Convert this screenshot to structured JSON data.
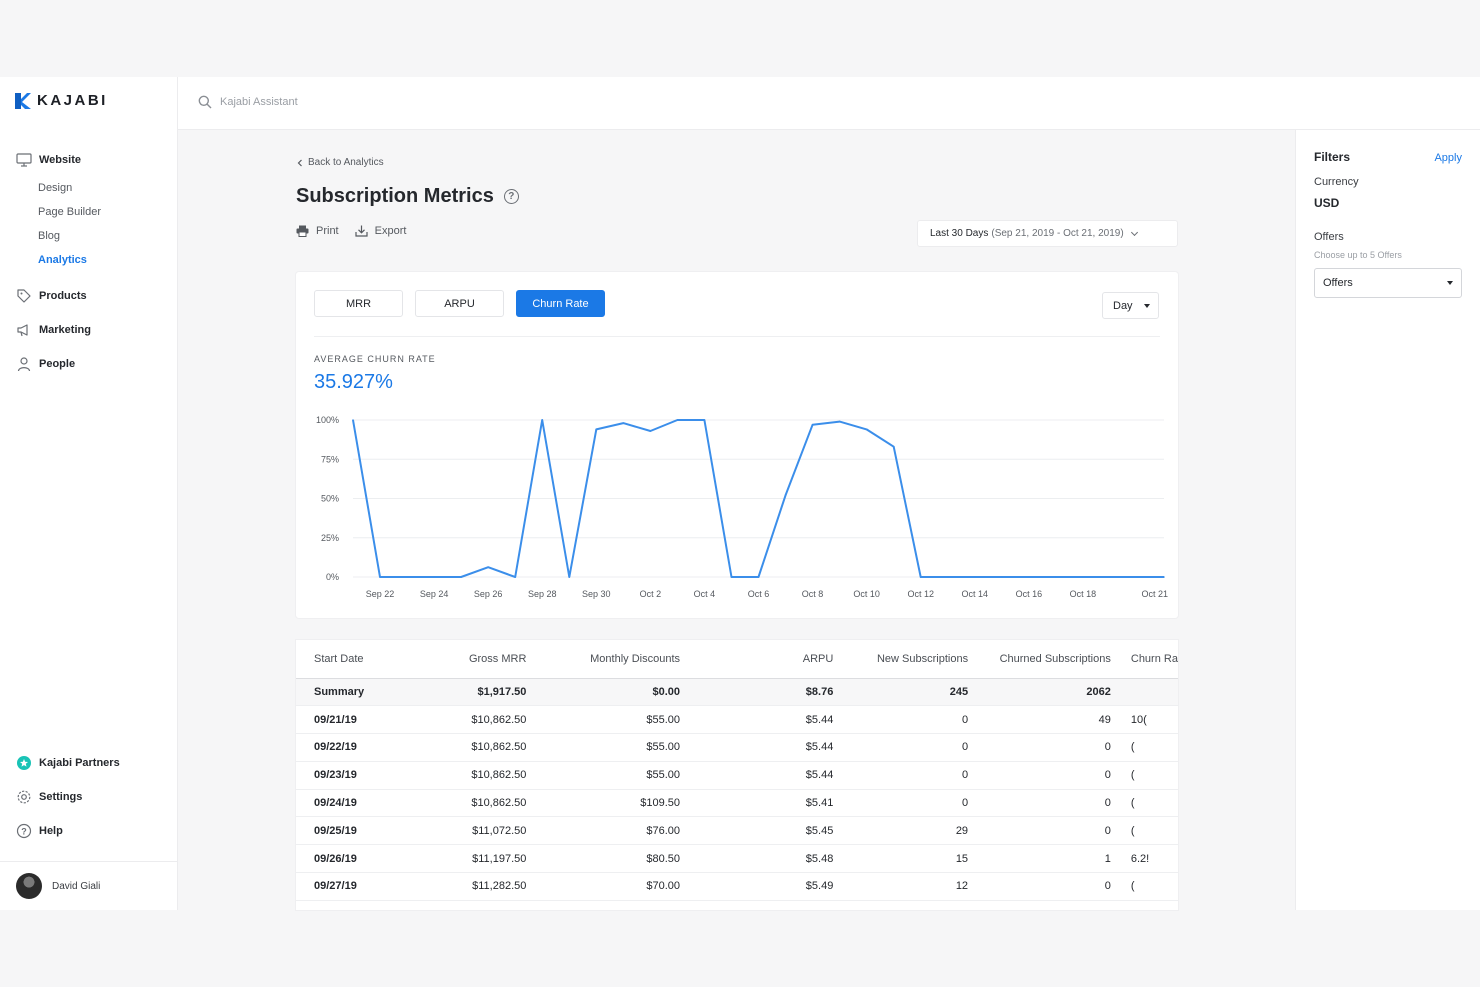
{
  "brand": {
    "name": "KAJABI",
    "color": "#1b79e6"
  },
  "search": {
    "placeholder": "Kajabi Assistant"
  },
  "sidebar": {
    "items": [
      {
        "label": "Website",
        "icon": "monitor-icon"
      },
      {
        "label": "Products",
        "icon": "tag-icon"
      },
      {
        "label": "Marketing",
        "icon": "megaphone-icon"
      },
      {
        "label": "People",
        "icon": "person-icon"
      }
    ],
    "website_sub": [
      "Design",
      "Page Builder",
      "Blog",
      "Analytics"
    ],
    "bottom": [
      {
        "label": "Kajabi Partners",
        "icon": "star-badge-icon"
      },
      {
        "label": "Settings",
        "icon": "gear-icon"
      },
      {
        "label": "Help",
        "icon": "help-circle-icon"
      }
    ],
    "user": {
      "name": "David Giali"
    }
  },
  "page": {
    "back_label": "Back to Analytics",
    "title": "Subscription Metrics",
    "print_label": "Print",
    "export_label": "Export",
    "date_range_label": "Last 30 Days",
    "date_range_dates": "(Sep 21, 2019 - Oct 21, 2019)"
  },
  "chart_card": {
    "tabs": [
      "MRR",
      "ARPU",
      "Churn Rate"
    ],
    "active_tab": "Churn Rate",
    "interval": "Day",
    "metric_label": "AVERAGE CHURN RATE",
    "metric_value": "35.927%"
  },
  "chart_data": {
    "type": "line",
    "title": "",
    "xlabel": "",
    "ylabel": "",
    "ylim": [
      0,
      100
    ],
    "y_ticks": [
      "0%",
      "25%",
      "50%",
      "75%",
      "100%"
    ],
    "x_tick_labels": [
      "Sep 22",
      "Sep 24",
      "Sep 26",
      "Sep 28",
      "Sep 30",
      "Oct 2",
      "Oct 4",
      "Oct 6",
      "Oct 8",
      "Oct 10",
      "Oct 12",
      "Oct 14",
      "Oct 16",
      "Oct 18",
      "Oct 21"
    ],
    "x": [
      "Sep 21",
      "Sep 22",
      "Sep 23",
      "Sep 24",
      "Sep 25",
      "Sep 26",
      "Sep 27",
      "Sep 28",
      "Sep 29",
      "Sep 30",
      "Oct 1",
      "Oct 2",
      "Oct 3",
      "Oct 4",
      "Oct 5",
      "Oct 6",
      "Oct 7",
      "Oct 8",
      "Oct 9",
      "Oct 10",
      "Oct 11",
      "Oct 12",
      "Oct 13",
      "Oct 14",
      "Oct 15",
      "Oct 16",
      "Oct 17",
      "Oct 18",
      "Oct 19",
      "Oct 20",
      "Oct 21"
    ],
    "series": [
      {
        "color": "#3b8eea",
        "values": [
          100,
          0,
          0,
          0,
          0,
          6.25,
          0,
          100,
          0,
          94,
          98,
          93,
          100,
          100,
          0,
          0,
          52,
          97,
          99,
          94,
          83,
          0,
          0,
          0,
          0,
          0,
          0,
          0,
          0,
          0,
          0
        ]
      }
    ],
    "grid": true
  },
  "table": {
    "columns": [
      "Start Date",
      "Gross MRR",
      "Monthly Discounts",
      "ARPU",
      "New Subscriptions",
      "Churned Subscriptions",
      "Churn Ra"
    ],
    "summary": [
      "Summary",
      "$1,917.50",
      "$0.00",
      "$8.76",
      "245",
      "2062",
      ""
    ],
    "rows": [
      [
        "09/21/19",
        "$10,862.50",
        "$55.00",
        "$5.44",
        "0",
        "49",
        "10("
      ],
      [
        "09/22/19",
        "$10,862.50",
        "$55.00",
        "$5.44",
        "0",
        "0",
        "("
      ],
      [
        "09/23/19",
        "$10,862.50",
        "$55.00",
        "$5.44",
        "0",
        "0",
        "("
      ],
      [
        "09/24/19",
        "$10,862.50",
        "$109.50",
        "$5.41",
        "0",
        "0",
        "("
      ],
      [
        "09/25/19",
        "$11,072.50",
        "$76.00",
        "$5.45",
        "29",
        "0",
        "("
      ],
      [
        "09/26/19",
        "$11,197.50",
        "$80.50",
        "$5.48",
        "15",
        "1",
        "6.2!"
      ],
      [
        "09/27/19",
        "$11,282.50",
        "$70.00",
        "$5.49",
        "12",
        "0",
        "("
      ]
    ]
  },
  "filters": {
    "title": "Filters",
    "apply_label": "Apply",
    "currency_label": "Currency",
    "currency_value": "USD",
    "offers_label": "Offers",
    "offers_hint": "Choose up to 5 Offers",
    "offers_placeholder": "Offers"
  }
}
